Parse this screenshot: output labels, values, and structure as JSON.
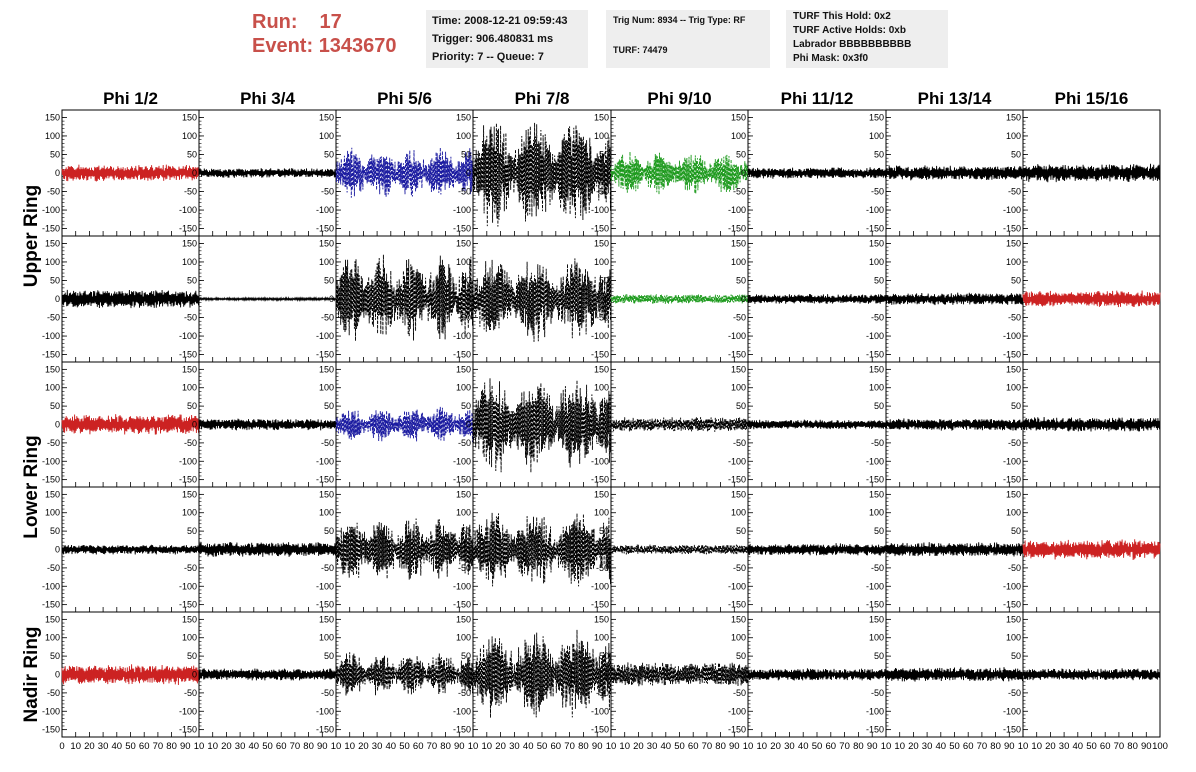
{
  "header": {
    "run_label": "Run:",
    "run_value": "17",
    "event_label": "Event:",
    "event_value": "1343670",
    "time": "Time: 2008-12-21 09:59:43",
    "trigger": "Trigger: 906.480831 ms",
    "priority": "Priority: 7 -- Queue: 7",
    "trig_num": "Trig Num: 8934 -- Trig Type: RF",
    "turf": "TURF: 74479",
    "turf_this_hold": "TURF This Hold: 0x2",
    "turf_active_holds": "TURF Active Holds: 0xb",
    "labrador": "Labrador BBBBBBBBBB",
    "phi_mask": "Phi Mask: 0x3f0"
  },
  "chart_data": {
    "type": "line",
    "title": "",
    "columns": [
      "Phi 1/2",
      "Phi 3/4",
      "Phi 5/6",
      "Phi 7/8",
      "Phi 9/10",
      "Phi 11/12",
      "Phi 13/14",
      "Phi 15/16"
    ],
    "rows": [
      "Upper Ring",
      "Upper Ring",
      "Lower Ring",
      "Lower Ring",
      "Nadir Ring"
    ],
    "ring_labels": [
      {
        "label": "Upper Ring",
        "rows": [
          0,
          1
        ]
      },
      {
        "label": "Lower Ring",
        "rows": [
          2,
          3
        ]
      },
      {
        "label": "Nadir Ring",
        "rows": [
          4
        ]
      }
    ],
    "ylim": [
      -170,
      170
    ],
    "yticks": [
      -150,
      -100,
      -50,
      0,
      50,
      100,
      150
    ],
    "ytick_labels": [
      "-150",
      "-100",
      "-50",
      "0",
      "50",
      "100",
      "150"
    ],
    "xlim": [
      0,
      100
    ],
    "xticks": [
      0,
      10,
      20,
      30,
      40,
      50,
      60,
      70,
      80,
      90,
      100
    ],
    "xtick_labels_first": [
      "0",
      "10",
      "20",
      "30",
      "40",
      "50",
      "60",
      "70",
      "80",
      "90",
      "10"
    ],
    "xtick_labels_other": [
      "10",
      "20",
      "30",
      "40",
      "50",
      "60",
      "70",
      "80",
      "90",
      "10"
    ],
    "xtick_labels_last": [
      "10",
      "20",
      "30",
      "40",
      "50",
      "60",
      "70",
      "80",
      "90",
      "100"
    ],
    "colors": {
      "black": "#000000",
      "red": "#cc2222",
      "blue": "#1a1aa0",
      "green": "#1d9a1d"
    },
    "panels": [
      [
        {
          "amp": 20,
          "color": "red",
          "dashed": false,
          "period": 0
        },
        {
          "amp": 12,
          "color": "black",
          "dashed": false,
          "period": 0
        },
        {
          "amp": 65,
          "color": "blue",
          "dashed": true,
          "period": 22
        },
        {
          "amp": 140,
          "color": "black",
          "dashed": true,
          "period": 30
        },
        {
          "amp": 55,
          "color": "green",
          "dashed": true,
          "period": 24
        },
        {
          "amp": 14,
          "color": "black",
          "dashed": false,
          "period": 0
        },
        {
          "amp": 18,
          "color": "black",
          "dashed": false,
          "period": 0
        },
        {
          "amp": 22,
          "color": "black",
          "dashed": false,
          "period": 0
        }
      ],
      [
        {
          "amp": 22,
          "color": "black",
          "dashed": false,
          "period": 0
        },
        {
          "amp": 3,
          "color": "black",
          "dashed": false,
          "period": 0
        },
        {
          "amp": 110,
          "color": "black",
          "dashed": true,
          "period": 22
        },
        {
          "amp": 110,
          "color": "black",
          "dashed": true,
          "period": 30
        },
        {
          "amp": 12,
          "color": "green",
          "dashed": true,
          "period": 0
        },
        {
          "amp": 12,
          "color": "black",
          "dashed": false,
          "period": 0
        },
        {
          "amp": 15,
          "color": "black",
          "dashed": false,
          "period": 0
        },
        {
          "amp": 20,
          "color": "red",
          "dashed": false,
          "period": 0
        }
      ],
      [
        {
          "amp": 25,
          "color": "red",
          "dashed": false,
          "period": 0
        },
        {
          "amp": 14,
          "color": "black",
          "dashed": false,
          "period": 0
        },
        {
          "amp": 45,
          "color": "blue",
          "dashed": true,
          "period": 22
        },
        {
          "amp": 125,
          "color": "black",
          "dashed": true,
          "period": 30
        },
        {
          "amp": 18,
          "color": "black",
          "dashed": true,
          "period": 0
        },
        {
          "amp": 12,
          "color": "black",
          "dashed": false,
          "period": 0
        },
        {
          "amp": 15,
          "color": "black",
          "dashed": false,
          "period": 0
        },
        {
          "amp": 18,
          "color": "black",
          "dashed": false,
          "period": 0
        }
      ],
      [
        {
          "amp": 12,
          "color": "black",
          "dashed": false,
          "period": 0
        },
        {
          "amp": 18,
          "color": "black",
          "dashed": false,
          "period": 0
        },
        {
          "amp": 85,
          "color": "black",
          "dashed": true,
          "period": 22
        },
        {
          "amp": 95,
          "color": "black",
          "dashed": true,
          "period": 30
        },
        {
          "amp": 12,
          "color": "black",
          "dashed": true,
          "period": 0
        },
        {
          "amp": 15,
          "color": "black",
          "dashed": false,
          "period": 0
        },
        {
          "amp": 18,
          "color": "black",
          "dashed": false,
          "period": 0
        },
        {
          "amp": 25,
          "color": "red",
          "dashed": false,
          "period": 0
        }
      ],
      [
        {
          "amp": 25,
          "color": "red",
          "dashed": false,
          "period": 0
        },
        {
          "amp": 15,
          "color": "black",
          "dashed": false,
          "period": 0
        },
        {
          "amp": 55,
          "color": "black",
          "dashed": true,
          "period": 22
        },
        {
          "amp": 110,
          "color": "black",
          "dashed": true,
          "period": 30
        },
        {
          "amp": 30,
          "color": "black",
          "dashed": true,
          "period": 0
        },
        {
          "amp": 15,
          "color": "black",
          "dashed": false,
          "period": 0
        },
        {
          "amp": 18,
          "color": "black",
          "dashed": false,
          "period": 0
        },
        {
          "amp": 15,
          "color": "black",
          "dashed": false,
          "period": 0
        }
      ]
    ]
  }
}
